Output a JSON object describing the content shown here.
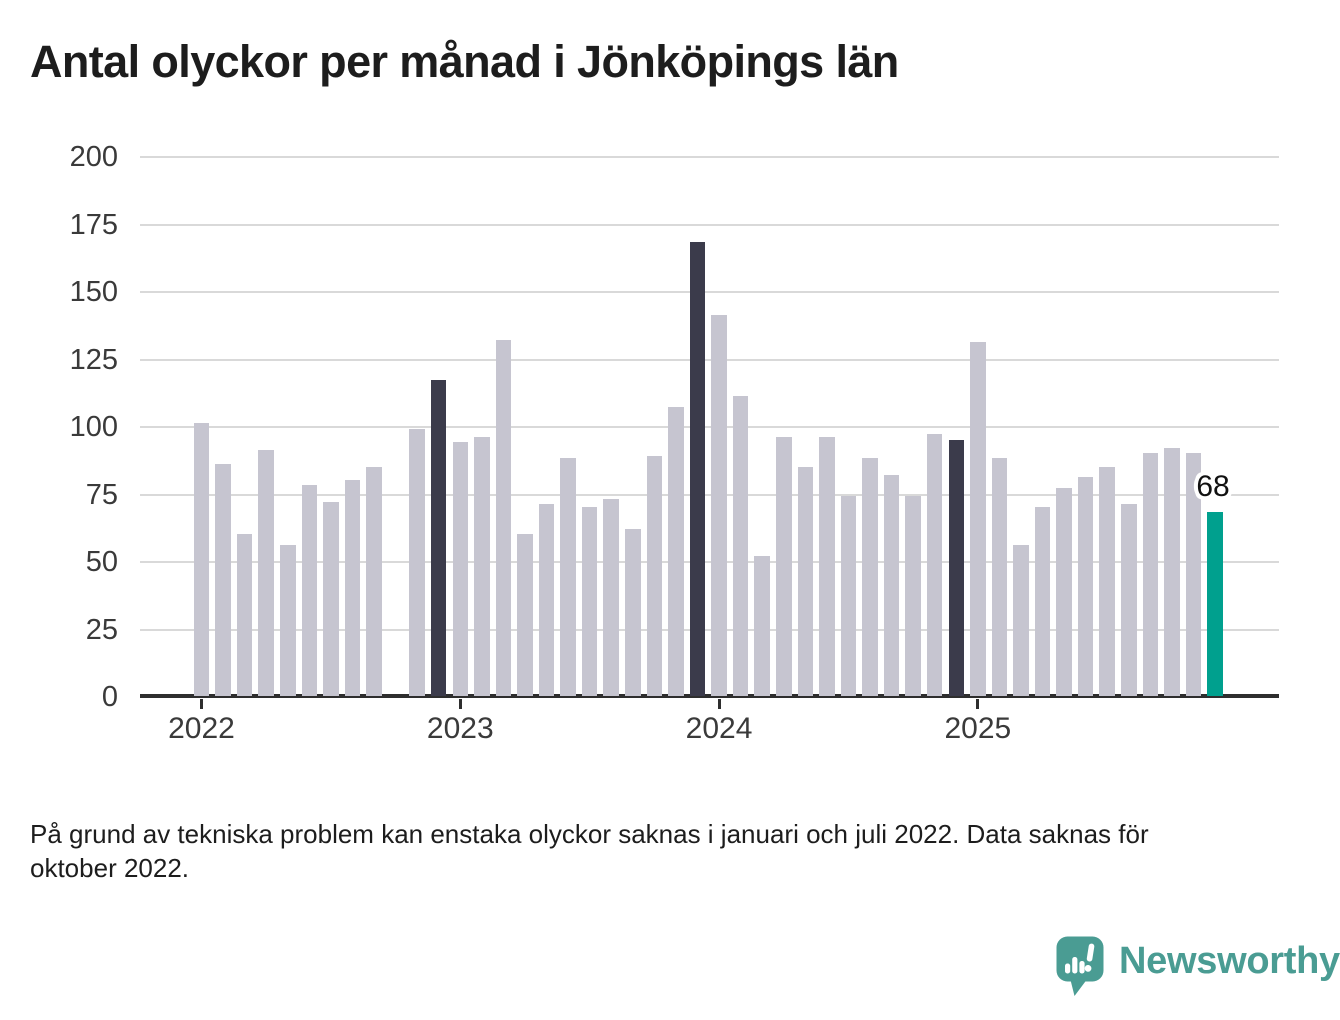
{
  "title": "Antal olyckor per månad i Jönköpings län",
  "footnote": {
    "lines": [
      "På grund av tekniska problem kan enstaka olyckor saknas i januari och juli 2022. Data saknas för",
      "oktober 2022."
    ]
  },
  "branding": {
    "name": "Newsworthy",
    "logo_icon": "speech-bubble-bar-chart-icon",
    "logo_color": "#4a9c93"
  },
  "colors": {
    "bar_default": "#c6c5d0",
    "bar_highlight": "#3b3b4b",
    "bar_current": "#00a08e",
    "gridline": "#d9d9d9",
    "axis": "#2e2e2e",
    "tick_text": "#3a3a3a",
    "label_text": "#111111"
  },
  "chart_data": {
    "type": "bar",
    "title": "Antal olyckor per månad i Jönköpings län",
    "xlabel": "",
    "ylabel": "",
    "ylim": [
      0,
      200
    ],
    "y_ticks": [
      0,
      25,
      50,
      75,
      100,
      125,
      150,
      175,
      200
    ],
    "grid": true,
    "x": [
      "2022-01",
      "2022-02",
      "2022-03",
      "2022-04",
      "2022-05",
      "2022-06",
      "2022-07",
      "2022-08",
      "2022-09",
      "2022-10",
      "2022-11",
      "2022-12",
      "2023-01",
      "2023-02",
      "2023-03",
      "2023-04",
      "2023-05",
      "2023-06",
      "2023-07",
      "2023-08",
      "2023-09",
      "2023-10",
      "2023-11",
      "2023-12",
      "2024-01",
      "2024-02",
      "2024-03",
      "2024-04",
      "2024-05",
      "2024-06",
      "2024-07",
      "2024-08",
      "2024-09",
      "2024-10",
      "2024-11",
      "2024-12",
      "2025-01",
      "2025-02",
      "2025-03",
      "2025-04",
      "2025-05",
      "2025-06",
      "2025-07",
      "2025-08",
      "2025-09",
      "2025-10",
      "2025-11",
      "2025-12"
    ],
    "values": [
      101,
      86,
      60,
      91,
      56,
      78,
      72,
      80,
      85,
      null,
      99,
      117,
      94,
      96,
      132,
      60,
      71,
      88,
      70,
      73,
      62,
      89,
      107,
      168,
      141,
      111,
      52,
      96,
      85,
      96,
      74,
      88,
      82,
      74,
      97,
      95,
      131,
      88,
      56,
      70,
      77,
      81,
      85,
      71,
      90,
      92,
      90,
      68
    ],
    "missing_months": [
      "2022-10"
    ],
    "highlighted_months": [
      "2022-12",
      "2023-12",
      "2024-12"
    ],
    "current_month": "2025-12",
    "bar_label": {
      "x": "2025-12",
      "text": "68"
    },
    "x_tick_labels": [
      "2022",
      "2023",
      "2024",
      "2025"
    ],
    "legend": null
  }
}
